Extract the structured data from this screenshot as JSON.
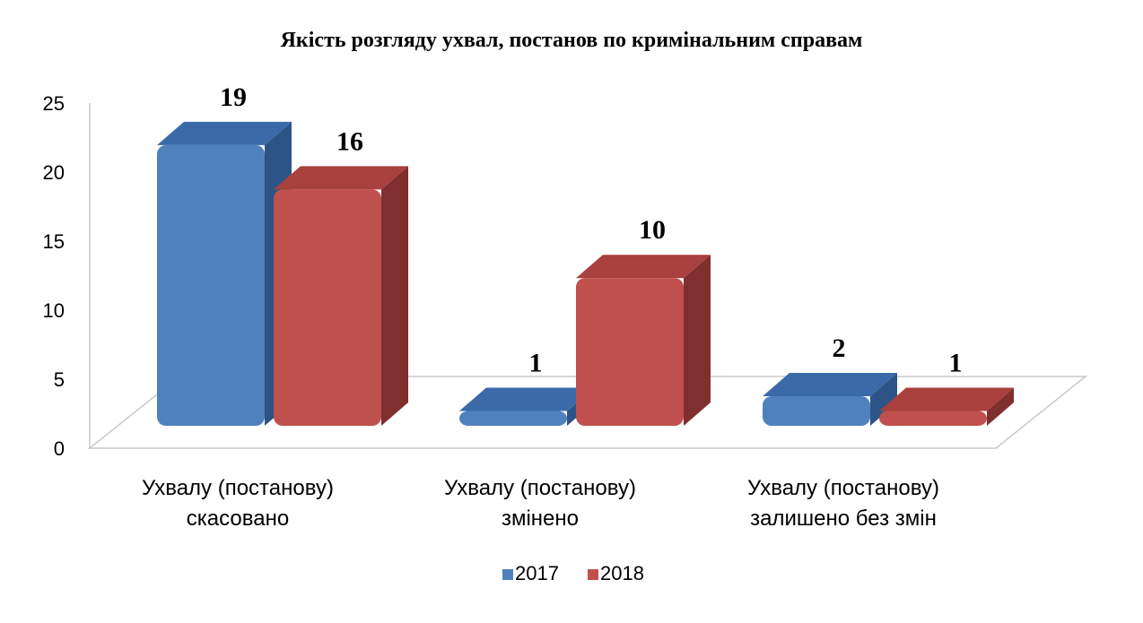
{
  "chart_data": {
    "type": "bar",
    "title": "Якість розгляду ухвал, постанов по кримінальним справам",
    "categories": [
      [
        "Ухвалу (постанову)",
        "скасовано"
      ],
      [
        "Ухвалу (постанову)",
        "змінено"
      ],
      [
        "Ухвалу (постанову)",
        "залишено без змін"
      ]
    ],
    "series": [
      {
        "name": "2017",
        "values": [
          19,
          1,
          2
        ],
        "color": "#4f81bd",
        "top_color": "#3a6aa8",
        "side_color": "#2d5486"
      },
      {
        "name": "2018",
        "values": [
          16,
          10,
          1
        ],
        "color": "#c0504d",
        "top_color": "#a8403d",
        "side_color": "#7f2f2d"
      }
    ],
    "yticks": [
      "0",
      "5",
      "10",
      "15",
      "20",
      "25"
    ],
    "ylim": [
      0,
      25
    ],
    "legend_position": "bottom",
    "grid": false,
    "projection": "3d"
  }
}
